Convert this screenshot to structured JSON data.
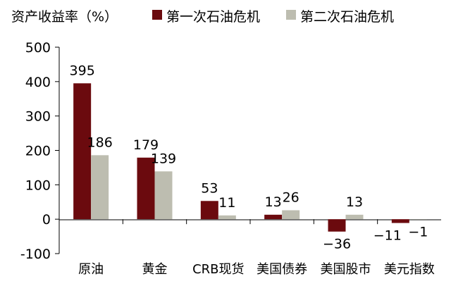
{
  "chart_data": {
    "type": "bar",
    "title": "资产收益率（%）",
    "categories": [
      "原油",
      "黄金",
      "CRB现货",
      "美国债券",
      "美国股市",
      "美元指数"
    ],
    "series": [
      {
        "name": "第一次石油危机",
        "color": "#6b0a0e",
        "values": [
          395,
          179,
          53,
          13,
          -36,
          -11
        ]
      },
      {
        "name": "第二次石油危机",
        "color": "#bdbdb0",
        "values": [
          186,
          139,
          11,
          26,
          13,
          -1
        ]
      }
    ],
    "data_labels": [
      [
        "395",
        "179",
        "53",
        "13",
        "−36",
        "−11"
      ],
      [
        "186",
        "139",
        "11",
        "26",
        "13",
        "−1"
      ]
    ],
    "yticks": [
      "500",
      "400",
      "300",
      "200",
      "100",
      "0",
      "-100"
    ],
    "ytick_values": [
      500,
      400,
      300,
      200,
      100,
      0,
      -100
    ],
    "ylim": [
      -100,
      500
    ],
    "grid": false,
    "legend_position": "top"
  }
}
